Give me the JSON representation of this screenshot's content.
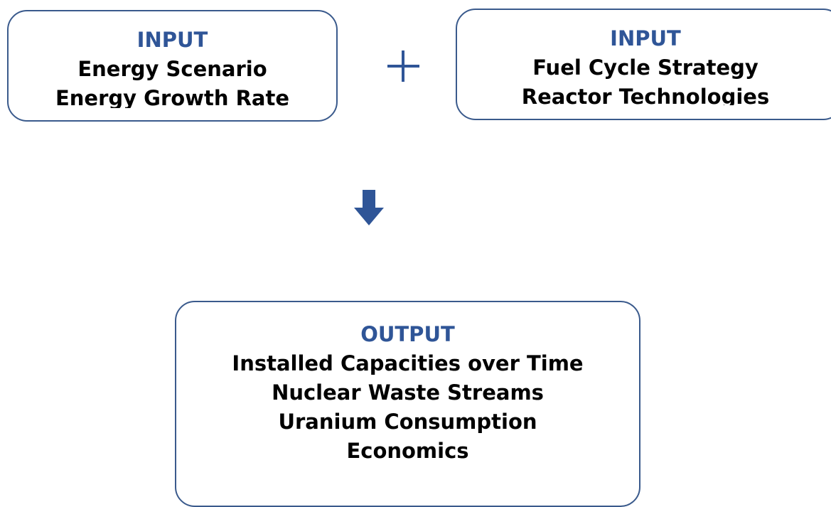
{
  "inputs": [
    {
      "title": "INPUT",
      "lines": [
        "Energy Scenario",
        "Energy Growth Rate"
      ]
    },
    {
      "title": "INPUT",
      "lines": [
        "Fuel Cycle Strategy",
        "Reactor Technologies"
      ]
    }
  ],
  "output": {
    "title": "OUTPUT",
    "lines": [
      "Installed Capacities over Time",
      "Nuclear Waste Streams",
      "Uranium Consumption",
      "Economics"
    ]
  }
}
